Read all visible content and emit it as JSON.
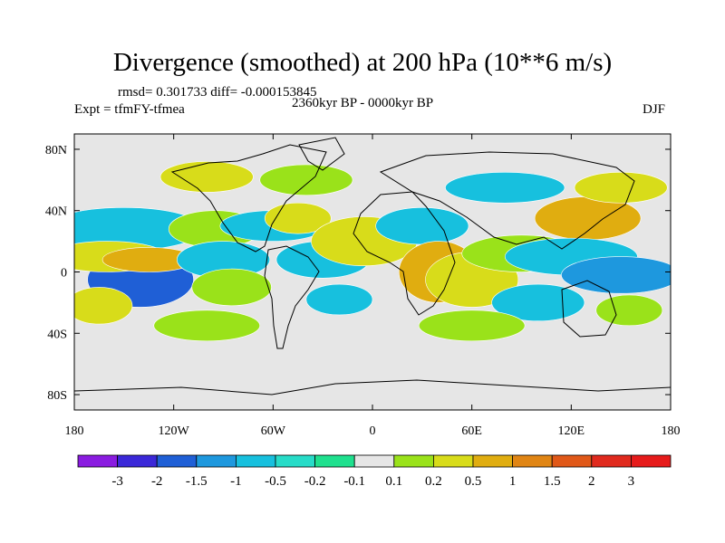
{
  "chart_data": {
    "type": "heatmap",
    "title": "Divergence (smoothed) at 200 hPa (10**6 m/s)",
    "stats": "rmsd= 0.301733 diff= -0.000153845",
    "period": "2360kyr BP - 0000kyr BP",
    "experiment": "Expt = tfmFY-tfmea",
    "season": "DJF",
    "projection": "cylindrical equidistant",
    "xlim": [
      -180,
      180
    ],
    "ylim": [
      -90,
      90
    ],
    "x_ticks": [
      {
        "value": -180,
        "label": "180"
      },
      {
        "value": -120,
        "label": "120W"
      },
      {
        "value": -60,
        "label": "60W"
      },
      {
        "value": 0,
        "label": "0"
      },
      {
        "value": 60,
        "label": "60E"
      },
      {
        "value": 120,
        "label": "120E"
      },
      {
        "value": 180,
        "label": "180"
      }
    ],
    "y_ticks": [
      {
        "value": 80,
        "label": "80N"
      },
      {
        "value": 40,
        "label": "40N"
      },
      {
        "value": 0,
        "label": "0"
      },
      {
        "value": -40,
        "label": "40S"
      },
      {
        "value": -80,
        "label": "80S"
      }
    ],
    "colorbar": {
      "levels": [
        "-3",
        "-2",
        "-1.5",
        "-1",
        "-0.5",
        "-0.2",
        "-0.1",
        "0.1",
        "0.2",
        "0.5",
        "1",
        "1.5",
        "2",
        "3"
      ],
      "colors": [
        "#8a1ce0",
        "#3b28d8",
        "#1f5fd6",
        "#1e98de",
        "#17c0de",
        "#27dcc8",
        "#1fe08e",
        "#e6e6e6",
        "#9ae21a",
        "#d8dc1a",
        "#e0ad10",
        "#e08514",
        "#e05818",
        "#e02a1e",
        "#e61b1b"
      ]
    },
    "field_blobs": [
      {
        "lon": -140,
        "lat": -5,
        "value": -1.5,
        "rlon": 16,
        "rlat": 9
      },
      {
        "lon": -150,
        "lat": 28,
        "value": -0.5,
        "rlon": 24,
        "rlat": 7
      },
      {
        "lon": -160,
        "lat": 10,
        "value": 0.5,
        "rlon": 18,
        "rlat": 5
      },
      {
        "lon": -135,
        "lat": 8,
        "value": 1,
        "rlon": 14,
        "rlat": 4
      },
      {
        "lon": -165,
        "lat": -22,
        "value": 0.5,
        "rlon": 10,
        "rlat": 6
      },
      {
        "lon": -95,
        "lat": 28,
        "value": 0.2,
        "rlon": 14,
        "rlat": 6
      },
      {
        "lon": -90,
        "lat": 8,
        "value": -0.5,
        "rlon": 14,
        "rlat": 6
      },
      {
        "lon": -85,
        "lat": -10,
        "value": 0.2,
        "rlon": 12,
        "rlat": 6
      },
      {
        "lon": -60,
        "lat": 30,
        "value": -0.5,
        "rlon": 16,
        "rlat": 5
      },
      {
        "lon": -45,
        "lat": 35,
        "value": 0.5,
        "rlon": 10,
        "rlat": 5
      },
      {
        "lon": -30,
        "lat": 8,
        "value": -0.5,
        "rlon": 14,
        "rlat": 6
      },
      {
        "lon": -20,
        "lat": -18,
        "value": -0.5,
        "rlon": 10,
        "rlat": 5
      },
      {
        "lon": -5,
        "lat": 20,
        "value": 0.5,
        "rlon": 16,
        "rlat": 8
      },
      {
        "lon": 30,
        "lat": 30,
        "value": -0.5,
        "rlon": 14,
        "rlat": 6
      },
      {
        "lon": 40,
        "lat": 0,
        "value": 1,
        "rlon": 12,
        "rlat": 10
      },
      {
        "lon": 60,
        "lat": -5,
        "value": 0.5,
        "rlon": 14,
        "rlat": 9
      },
      {
        "lon": 90,
        "lat": 12,
        "value": 0.2,
        "rlon": 18,
        "rlat": 6
      },
      {
        "lon": 130,
        "lat": 35,
        "value": 1,
        "rlon": 16,
        "rlat": 7
      },
      {
        "lon": 120,
        "lat": 10,
        "value": -0.5,
        "rlon": 20,
        "rlat": 6
      },
      {
        "lon": 150,
        "lat": -2,
        "value": -1,
        "rlon": 18,
        "rlat": 6
      },
      {
        "lon": 100,
        "lat": -20,
        "value": -0.5,
        "rlon": 14,
        "rlat": 6
      },
      {
        "lon": 155,
        "lat": -25,
        "value": 0.2,
        "rlon": 10,
        "rlat": 5
      },
      {
        "lon": -100,
        "lat": 62,
        "value": 0.5,
        "rlon": 14,
        "rlat": 5
      },
      {
        "lon": -40,
        "lat": 60,
        "value": 0.2,
        "rlon": 14,
        "rlat": 5
      },
      {
        "lon": 80,
        "lat": 55,
        "value": -0.5,
        "rlon": 18,
        "rlat": 5
      },
      {
        "lon": 150,
        "lat": 55,
        "value": 0.5,
        "rlon": 14,
        "rlat": 5
      },
      {
        "lon": -100,
        "lat": -35,
        "value": 0.2,
        "rlon": 16,
        "rlat": 5
      },
      {
        "lon": 60,
        "lat": -35,
        "value": 0.2,
        "rlon": 16,
        "rlat": 5
      }
    ]
  }
}
